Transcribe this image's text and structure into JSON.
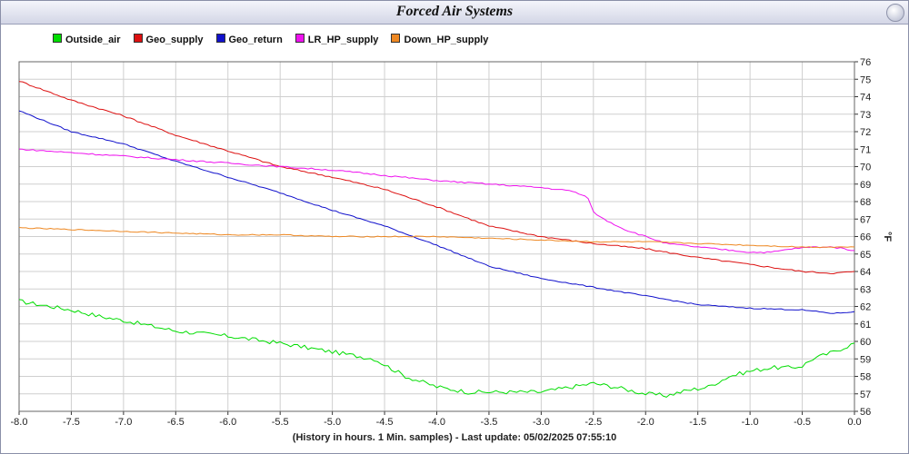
{
  "window": {
    "title": "Forced Air Systems"
  },
  "colors": {
    "Outside_air": "#00dd00",
    "Geo_supply": "#dd1111",
    "Geo_return": "#1111cc",
    "LR_HP_supply": "#ee11ee",
    "Down_HP_supply": "#ee8822"
  },
  "chart_data": {
    "type": "line",
    "title": "Forced Air Systems",
    "xlabel": "(History in hours. 1 Min. samples) - Last update: 05/02/2025 07:55:10",
    "ylabel": "°F",
    "xlim": [
      -8.0,
      0.0
    ],
    "ylim": [
      56,
      76
    ],
    "grid": true,
    "legend_position": "top-left",
    "x_ticks": [
      "-8.0",
      "-7.5",
      "-7.0",
      "-6.5",
      "-6.0",
      "-5.5",
      "-5.0",
      "-4.5",
      "-4.0",
      "-3.5",
      "-3.0",
      "-2.5",
      "-2.0",
      "-1.5",
      "-1.0",
      "-0.5",
      "0.0"
    ],
    "y_ticks": [
      "56",
      "57",
      "58",
      "59",
      "60",
      "61",
      "62",
      "63",
      "64",
      "65",
      "66",
      "67",
      "68",
      "69",
      "70",
      "71",
      "72",
      "73",
      "74",
      "75",
      "76"
    ],
    "series": [
      {
        "name": "Outside_air",
        "color": "#00dd00",
        "x": [
          -8.0,
          -7.5,
          -7.2,
          -7.0,
          -6.5,
          -6.0,
          -5.5,
          -5.0,
          -4.6,
          -4.3,
          -4.0,
          -3.7,
          -3.5,
          -3.2,
          -3.0,
          -2.8,
          -2.5,
          -2.3,
          -2.0,
          -1.8,
          -1.6,
          -1.4,
          -1.2,
          -1.0,
          -0.8,
          -0.6,
          -0.5,
          -0.4,
          -0.2,
          0.0
        ],
        "y": [
          62.3,
          61.8,
          61.4,
          61.2,
          60.6,
          60.3,
          59.9,
          59.4,
          59.0,
          58.0,
          57.4,
          57.1,
          57.1,
          57.1,
          57.1,
          57.3,
          57.6,
          57.4,
          57.0,
          56.9,
          57.2,
          57.4,
          58.0,
          58.3,
          58.5,
          58.5,
          58.6,
          59.0,
          59.4,
          59.9
        ]
      },
      {
        "name": "Geo_supply",
        "color": "#dd1111",
        "x": [
          -8.0,
          -7.5,
          -7.0,
          -6.5,
          -6.0,
          -5.5,
          -5.0,
          -4.5,
          -4.0,
          -3.5,
          -3.0,
          -2.5,
          -2.0,
          -1.5,
          -1.0,
          -0.5,
          -0.2,
          0.0
        ],
        "y": [
          74.9,
          73.8,
          72.9,
          71.8,
          70.9,
          70.0,
          69.4,
          68.7,
          67.7,
          66.6,
          66.0,
          65.6,
          65.3,
          64.8,
          64.4,
          64.0,
          63.9,
          64.0
        ]
      },
      {
        "name": "Geo_return",
        "color": "#1111cc",
        "x": [
          -8.0,
          -7.5,
          -7.0,
          -6.5,
          -6.0,
          -5.5,
          -5.0,
          -4.5,
          -4.0,
          -3.5,
          -3.0,
          -2.5,
          -2.0,
          -1.5,
          -1.0,
          -0.5,
          -0.2,
          0.0
        ],
        "y": [
          73.2,
          72.0,
          71.3,
          70.3,
          69.4,
          68.5,
          67.5,
          66.6,
          65.5,
          64.3,
          63.6,
          63.1,
          62.6,
          62.1,
          61.9,
          61.8,
          61.6,
          61.7
        ]
      },
      {
        "name": "LR_HP_supply",
        "color": "#ee11ee",
        "x": [
          -8.0,
          -7.5,
          -7.0,
          -6.5,
          -6.0,
          -5.5,
          -5.0,
          -4.5,
          -4.0,
          -3.5,
          -3.0,
          -2.7,
          -2.55,
          -2.5,
          -2.4,
          -2.2,
          -2.0,
          -1.8,
          -1.5,
          -1.0,
          -0.8,
          -0.6,
          -0.4,
          -0.2,
          0.0
        ],
        "y": [
          71.0,
          70.8,
          70.6,
          70.4,
          70.2,
          70.0,
          69.8,
          69.5,
          69.2,
          69.0,
          68.8,
          68.6,
          68.2,
          67.4,
          67.0,
          66.4,
          66.0,
          65.6,
          65.4,
          65.1,
          65.1,
          65.3,
          65.4,
          65.4,
          65.2
        ]
      },
      {
        "name": "Down_HP_supply",
        "color": "#ee8822",
        "x": [
          -8.0,
          -7.5,
          -7.0,
          -6.5,
          -6.0,
          -5.5,
          -5.0,
          -4.5,
          -4.0,
          -3.5,
          -3.0,
          -2.5,
          -2.0,
          -1.5,
          -1.0,
          -0.5,
          0.0
        ],
        "y": [
          66.5,
          66.4,
          66.3,
          66.2,
          66.1,
          66.1,
          66.0,
          66.0,
          66.0,
          65.9,
          65.8,
          65.7,
          65.7,
          65.6,
          65.5,
          65.4,
          65.4
        ]
      }
    ]
  }
}
